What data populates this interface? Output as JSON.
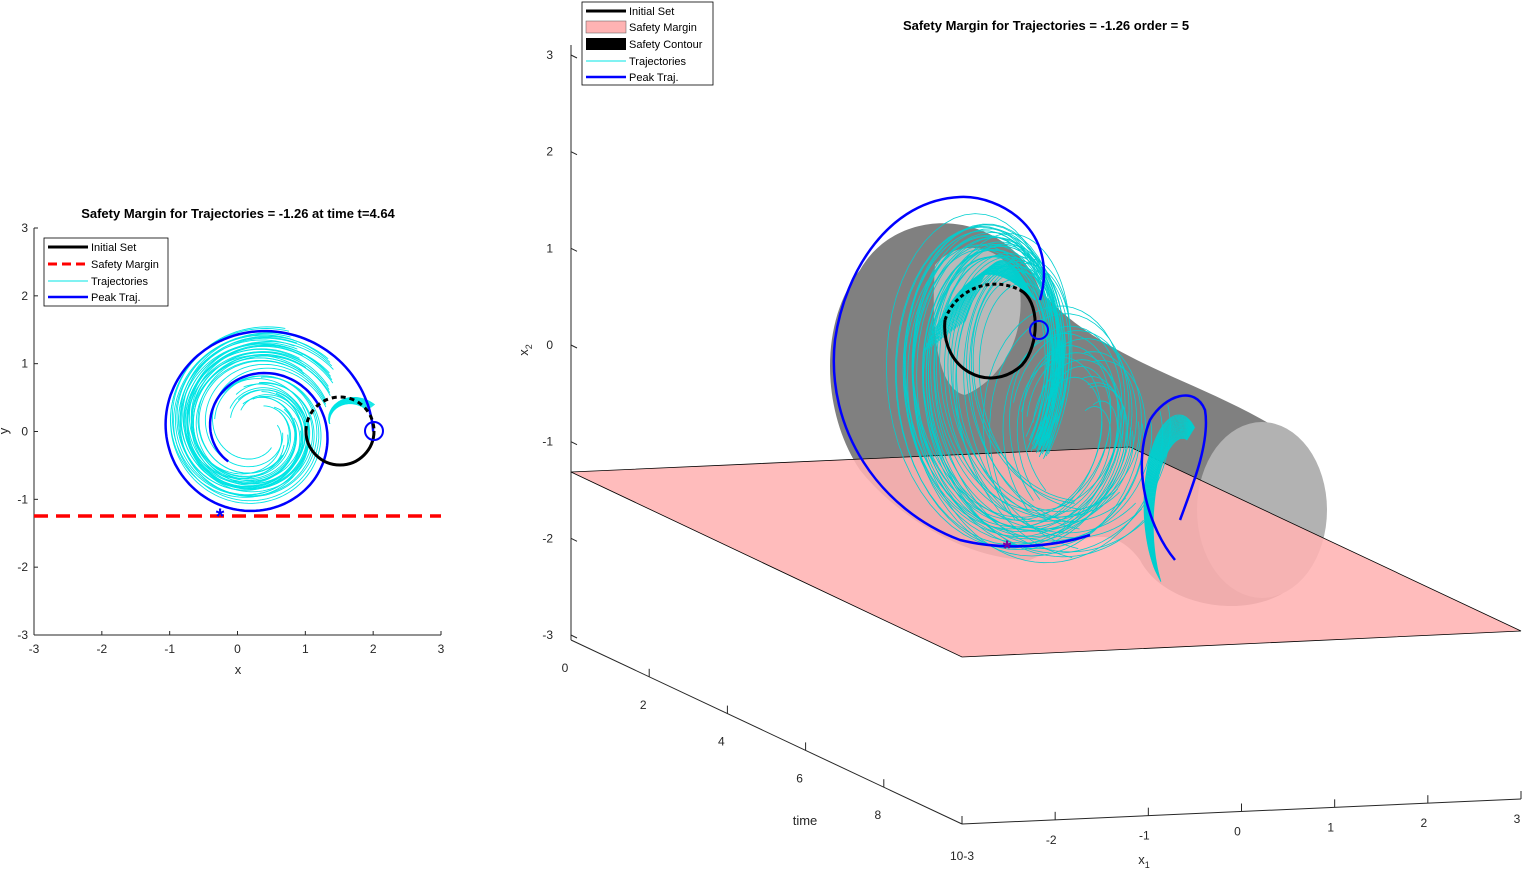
{
  "chart_data": [
    {
      "type": "line",
      "title": "Safety Margin for Trajectories = -1.26 at time t=4.64",
      "xlabel": "x",
      "ylabel": "y",
      "xlim": [
        -3,
        3
      ],
      "ylim": [
        -3,
        3
      ],
      "xticks": [
        "-3",
        "-2",
        "-1",
        "0",
        "1",
        "2",
        "3"
      ],
      "yticks": [
        "3",
        "2",
        "1",
        "0",
        "-1",
        "-2",
        "-3"
      ],
      "legend_position": "top-left",
      "legend": [
        {
          "label": "Initial Set",
          "color": "#000000",
          "style": "solid-thick"
        },
        {
          "label": "Safety Margin",
          "color": "#ff0000",
          "style": "dashed"
        },
        {
          "label": "Trajectories",
          "color": "#00e5e5",
          "style": "thin"
        },
        {
          "label": "Peak Traj.",
          "color": "#0000ff",
          "style": "solid"
        }
      ],
      "series": [
        {
          "name": "Initial Set",
          "shape": "circle",
          "center": [
            1.5,
            0
          ],
          "radius": 0.5
        },
        {
          "name": "Safety Margin",
          "y": -1.26
        },
        {
          "name": "Peak Traj.",
          "start": [
            2.0,
            0.0
          ],
          "peak_point": [
            -0.25,
            -1.26
          ]
        }
      ]
    },
    {
      "type": "line",
      "title": "Safety Margin for Trajectories = -1.26 order = 5",
      "xlabel": "x1",
      "ylabel": "x2",
      "zlabel": "time",
      "x1_ticks": [
        "-2",
        "-1",
        "0",
        "1",
        "2",
        "3"
      ],
      "x1_corner_label": "10-3",
      "x2_ticks": [
        "3",
        "2",
        "1",
        "0",
        "-1",
        "-2",
        "-3"
      ],
      "time_ticks": [
        "0",
        "2",
        "4",
        "6",
        "8"
      ],
      "xlim": [
        -3,
        3
      ],
      "ylim": [
        -3,
        3
      ],
      "zlim": [
        0,
        10
      ],
      "legend_position": "top-left",
      "legend": [
        {
          "label": "Initial Set",
          "color": "#000000",
          "style": "line"
        },
        {
          "label": "Safety Margin",
          "color": "#ffb3b3",
          "style": "patch"
        },
        {
          "label": "Safety Contour",
          "color": "#000000",
          "style": "patch"
        },
        {
          "label": "Trajectories",
          "color": "#00e5e5",
          "style": "thin"
        },
        {
          "label": "Peak Traj.",
          "color": "#0000ff",
          "style": "line"
        }
      ],
      "safety_plane_x2": -1.26,
      "colors": {
        "plane": "#ffb3b3",
        "tube": "#808080",
        "traj": "#00e5e5",
        "peak": "#0000ff"
      }
    }
  ]
}
